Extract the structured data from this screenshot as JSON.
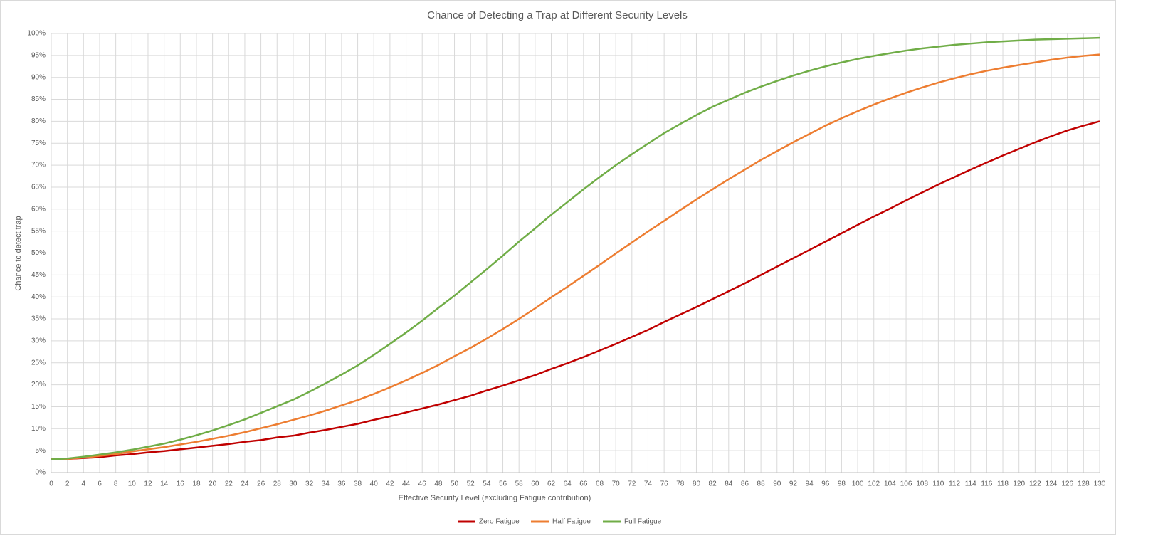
{
  "chart_data": {
    "type": "line",
    "title": "Chance of Detecting a Trap at Different Security Levels",
    "xlabel": "Effective Security Level  (excluding Fatigue contribution)",
    "ylabel": "Chance to detect trap",
    "x": [
      0,
      2,
      4,
      6,
      8,
      10,
      12,
      14,
      16,
      18,
      20,
      22,
      24,
      26,
      28,
      30,
      32,
      34,
      36,
      38,
      40,
      42,
      44,
      46,
      48,
      50,
      52,
      54,
      56,
      58,
      60,
      62,
      64,
      66,
      68,
      70,
      72,
      74,
      76,
      78,
      80,
      82,
      84,
      86,
      88,
      90,
      92,
      94,
      96,
      98,
      100,
      102,
      104,
      106,
      108,
      110,
      112,
      114,
      116,
      118,
      120,
      122,
      124,
      126,
      128,
      130
    ],
    "series": [
      {
        "name": "Zero Fatigue",
        "color": "#c00000",
        "values": [
          3,
          3.1,
          3.3,
          3.5,
          3.9,
          4.2,
          4.6,
          4.9,
          5.3,
          5.7,
          6.1,
          6.5,
          7.0,
          7.4,
          8.0,
          8.4,
          9.1,
          9.7,
          10.4,
          11.1,
          12.0,
          12.8,
          13.7,
          14.6,
          15.5,
          16.5,
          17.5,
          18.7,
          19.8,
          21.0,
          22.2,
          23.6,
          24.9,
          26.3,
          27.8,
          29.3,
          30.9,
          32.5,
          34.3,
          36.0,
          37.7,
          39.5,
          41.3,
          43.1,
          45.0,
          46.9,
          48.8,
          50.7,
          52.6,
          54.5,
          56.4,
          58.3,
          60.1,
          62.0,
          63.8,
          65.6,
          67.3,
          69.0,
          70.6,
          72.2,
          73.7,
          75.2,
          76.6,
          77.9,
          79.0,
          80.0
        ]
      },
      {
        "name": "Half Fatigue",
        "color": "#ed7d31",
        "values": [
          3,
          3.1,
          3.4,
          3.8,
          4.2,
          4.8,
          5.3,
          5.8,
          6.4,
          7.0,
          7.7,
          8.4,
          9.2,
          10.1,
          11.0,
          12.0,
          13.0,
          14.1,
          15.3,
          16.5,
          17.9,
          19.4,
          21.0,
          22.7,
          24.5,
          26.5,
          28.4,
          30.5,
          32.7,
          35.0,
          37.4,
          39.9,
          42.3,
          44.8,
          47.3,
          49.9,
          52.4,
          54.9,
          57.3,
          59.8,
          62.2,
          64.5,
          66.8,
          69.0,
          71.2,
          73.2,
          75.2,
          77.1,
          79.0,
          80.7,
          82.3,
          83.8,
          85.2,
          86.5,
          87.7,
          88.8,
          89.8,
          90.7,
          91.5,
          92.2,
          92.8,
          93.4,
          94.0,
          94.5,
          94.9,
          95.2
        ]
      },
      {
        "name": "Full Fatigue",
        "color": "#70ad47",
        "values": [
          3,
          3.2,
          3.6,
          4.1,
          4.6,
          5.2,
          5.9,
          6.6,
          7.5,
          8.5,
          9.6,
          10.8,
          12.1,
          13.6,
          15.1,
          16.6,
          18.4,
          20.3,
          22.3,
          24.4,
          26.8,
          29.3,
          31.9,
          34.6,
          37.5,
          40.3,
          43.3,
          46.3,
          49.4,
          52.6,
          55.6,
          58.7,
          61.6,
          64.5,
          67.3,
          70.0,
          72.5,
          74.9,
          77.3,
          79.4,
          81.4,
          83.3,
          84.9,
          86.5,
          87.9,
          89.2,
          90.4,
          91.5,
          92.5,
          93.4,
          94.2,
          94.9,
          95.5,
          96.1,
          96.6,
          97.0,
          97.4,
          97.7,
          98.0,
          98.2,
          98.4,
          98.6,
          98.7,
          98.8,
          98.9,
          99.0
        ]
      }
    ],
    "xlim": [
      0,
      130
    ],
    "xticks": [
      0,
      2,
      4,
      6,
      8,
      10,
      12,
      14,
      16,
      18,
      20,
      22,
      24,
      26,
      28,
      30,
      32,
      34,
      36,
      38,
      40,
      42,
      44,
      46,
      48,
      50,
      52,
      54,
      56,
      58,
      60,
      62,
      64,
      66,
      68,
      70,
      72,
      74,
      76,
      78,
      80,
      82,
      84,
      86,
      88,
      90,
      92,
      94,
      96,
      98,
      100,
      102,
      104,
      106,
      108,
      110,
      112,
      114,
      116,
      118,
      120,
      122,
      124,
      126,
      128,
      130
    ],
    "ylim": [
      0,
      100
    ],
    "yticks": [
      {
        "value": 0,
        "label": "0%"
      },
      {
        "value": 5,
        "label": "5%"
      },
      {
        "value": 10,
        "label": "10%"
      },
      {
        "value": 15,
        "label": "15%"
      },
      {
        "value": 20,
        "label": "20%"
      },
      {
        "value": 25,
        "label": "25%"
      },
      {
        "value": 30,
        "label": "30%"
      },
      {
        "value": 35,
        "label": "35%"
      },
      {
        "value": 40,
        "label": "40%"
      },
      {
        "value": 45,
        "label": "45%"
      },
      {
        "value": 50,
        "label": "50%"
      },
      {
        "value": 55,
        "label": "55%"
      },
      {
        "value": 60,
        "label": "60%"
      },
      {
        "value": 65,
        "label": "65%"
      },
      {
        "value": 70,
        "label": "70%"
      },
      {
        "value": 75,
        "label": "75%"
      },
      {
        "value": 80,
        "label": "80%"
      },
      {
        "value": 85,
        "label": "85%"
      },
      {
        "value": 90,
        "label": "90%"
      },
      {
        "value": 95,
        "label": "95%"
      },
      {
        "value": 100,
        "label": "100%"
      }
    ],
    "grid": true,
    "legend": "bottom"
  }
}
